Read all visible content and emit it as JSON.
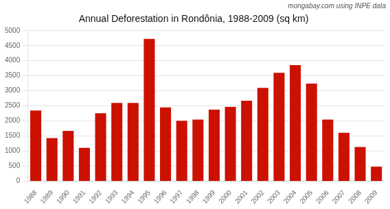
{
  "chart_data": {
    "type": "bar",
    "title": "Annual Deforestation in Rondônia, 1988-2009 (sq km)",
    "annotations": [
      "mongabay.com using INPE data"
    ],
    "categories": [
      1988,
      1989,
      1990,
      1991,
      1992,
      1993,
      1994,
      1995,
      1996,
      1997,
      1998,
      1999,
      2000,
      2001,
      2002,
      2003,
      2004,
      2005,
      2006,
      2007,
      2008,
      2009
    ],
    "values": [
      2350,
      1430,
      1670,
      1110,
      2260,
      2600,
      2600,
      4730,
      2450,
      2010,
      2050,
      2380,
      2470,
      2673,
      3099,
      3601,
      3858,
      3244,
      2050,
      1611,
      1136,
      482
    ],
    "color": "#cc1100",
    "ylim": [
      0,
      5000
    ],
    "yticks": [
      0,
      500,
      1000,
      1500,
      2000,
      2500,
      3000,
      3500,
      4000,
      4500,
      5000
    ],
    "grid": true
  }
}
